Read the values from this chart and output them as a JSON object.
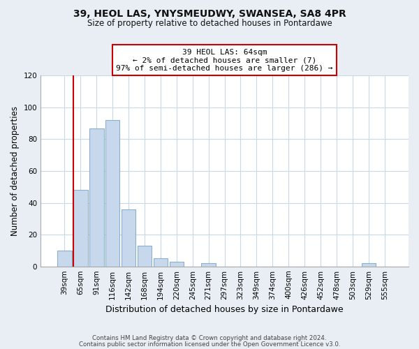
{
  "title1": "39, HEOL LAS, YNYSMEUDWY, SWANSEA, SA8 4PR",
  "title2": "Size of property relative to detached houses in Pontardawe",
  "xlabel": "Distribution of detached houses by size in Pontardawe",
  "ylabel": "Number of detached properties",
  "bar_labels": [
    "39sqm",
    "65sqm",
    "91sqm",
    "116sqm",
    "142sqm",
    "168sqm",
    "194sqm",
    "220sqm",
    "245sqm",
    "271sqm",
    "297sqm",
    "323sqm",
    "349sqm",
    "374sqm",
    "400sqm",
    "426sqm",
    "452sqm",
    "478sqm",
    "503sqm",
    "529sqm",
    "555sqm"
  ],
  "bar_values": [
    10,
    48,
    87,
    92,
    36,
    13,
    5,
    3,
    0,
    2,
    0,
    0,
    0,
    0,
    0,
    0,
    0,
    0,
    0,
    2,
    0
  ],
  "bar_color": "#c8d8ec",
  "bar_edge_color": "#8ab0d0",
  "ylim": [
    0,
    120
  ],
  "yticks": [
    0,
    20,
    40,
    60,
    80,
    100,
    120
  ],
  "annotation_title": "39 HEOL LAS: 64sqm",
  "annotation_line1": "← 2% of detached houses are smaller (7)",
  "annotation_line2": "97% of semi-detached houses are larger (286) →",
  "vline_color": "#cc0000",
  "annotation_box_color": "#ffffff",
  "annotation_box_edge": "#cc0000",
  "footer1": "Contains HM Land Registry data © Crown copyright and database right 2024.",
  "footer2": "Contains public sector information licensed under the Open Government Licence v3.0.",
  "background_color": "#e8eef4",
  "plot_background_color": "#ffffff",
  "grid_color": "#c8d8e8"
}
